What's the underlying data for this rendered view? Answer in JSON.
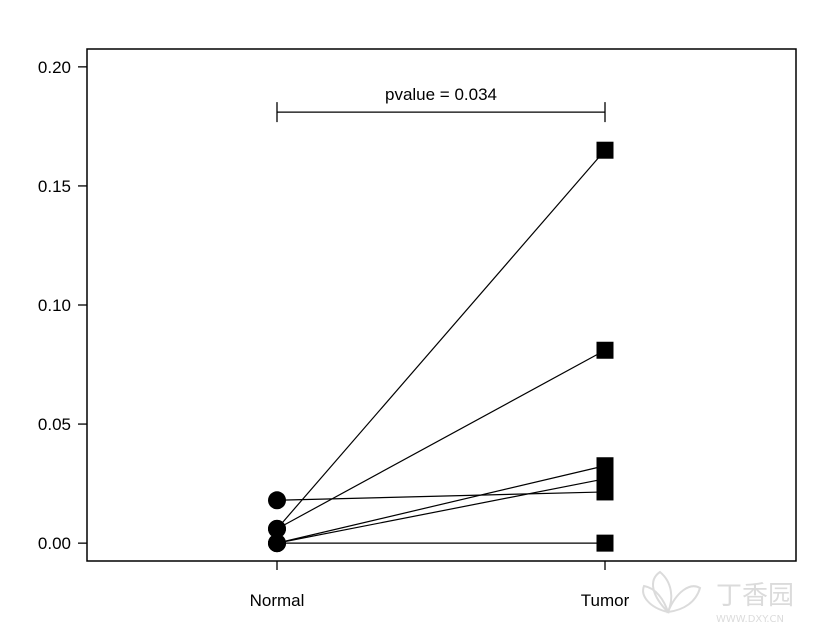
{
  "chart_data": {
    "type": "scatter",
    "categories": [
      "Normal",
      "Tumor"
    ],
    "title": "",
    "xlabel": "",
    "ylabel": "",
    "ylim": [
      -0.0075,
      0.2075
    ],
    "yticks": [
      "0.00",
      "0.05",
      "0.10",
      "0.15",
      "0.20"
    ],
    "ytick_values": [
      0,
      0.05,
      0.1,
      0.15,
      0.2
    ],
    "grid": false,
    "markers": {
      "Normal": "circle",
      "Tumor": "square"
    },
    "pairs": [
      {
        "normal": 0.018,
        "tumor": 0.0215
      },
      {
        "normal": 0.006,
        "tumor": 0.165
      },
      {
        "normal": 0.006,
        "tumor": 0.081
      },
      {
        "normal": 0.0,
        "tumor": 0.0325
      },
      {
        "normal": 0.0,
        "tumor": 0.027
      },
      {
        "normal": 0.0,
        "tumor": 0.0
      }
    ],
    "annotation": {
      "text": "pvalue = 0.034",
      "y": 0.181
    }
  },
  "watermark": {
    "text": "丁香园",
    "subtext": "WWW.DXY.CN",
    "color": "#d8d8d8"
  }
}
